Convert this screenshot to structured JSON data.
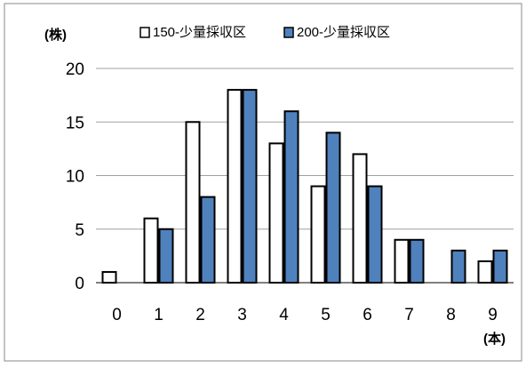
{
  "chart_data": {
    "type": "bar",
    "title": "",
    "ylabel": "(株)",
    "xlabel": "(本)",
    "categories": [
      "0",
      "1",
      "2",
      "3",
      "4",
      "5",
      "6",
      "7",
      "8",
      "9"
    ],
    "series": [
      {
        "name": "150-少量採収区",
        "color": "#ffffff",
        "values": [
          1,
          6,
          15,
          18,
          13,
          9,
          12,
          4,
          0,
          2
        ]
      },
      {
        "name": "200-少量採収区",
        "color": "#4f81bd",
        "values": [
          0,
          5,
          8,
          18,
          16,
          14,
          9,
          4,
          3,
          3
        ]
      }
    ],
    "y_ticks": [
      "0",
      "5",
      "10",
      "15",
      "20"
    ],
    "ylim": [
      0,
      20
    ],
    "grid": true,
    "legend_position": "top"
  }
}
